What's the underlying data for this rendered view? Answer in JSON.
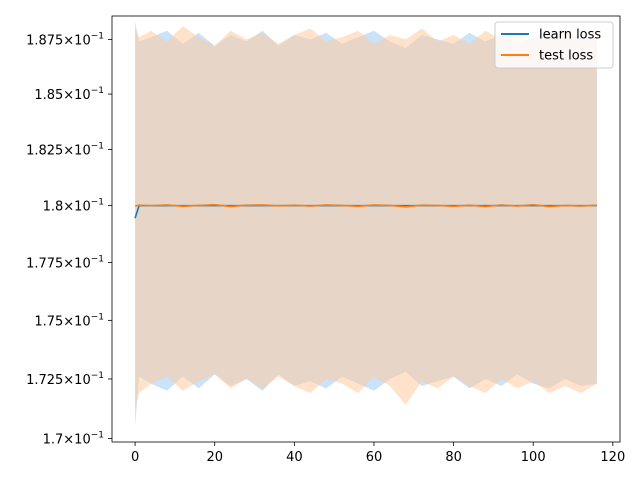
{
  "chart_data": {
    "type": "line",
    "title": "",
    "xlabel": "",
    "ylabel": "",
    "xlim": [
      -5.8,
      121.8
    ],
    "ylim": [
      0.16985,
      0.18858
    ],
    "y_scale": "log",
    "grid": false,
    "legend_position": "top-right",
    "x_ticks": [
      0,
      20,
      40,
      60,
      80,
      100,
      120
    ],
    "x_tick_labels": [
      "0",
      "20",
      "40",
      "60",
      "80",
      "100",
      "120"
    ],
    "y_ticks": [
      0.17,
      0.1725,
      0.175,
      0.1775,
      0.18,
      0.1825,
      0.185,
      0.1875
    ],
    "y_tick_labels": [
      {
        "mantissa": "1.7",
        "base": "10",
        "exponent": "−1"
      },
      {
        "mantissa": "1.725",
        "base": "10",
        "exponent": "−1"
      },
      {
        "mantissa": "1.75",
        "base": "10",
        "exponent": "−1"
      },
      {
        "mantissa": "1.775",
        "base": "10",
        "exponent": "−1"
      },
      {
        "mantissa": "1.8",
        "base": "10",
        "exponent": "−1"
      },
      {
        "mantissa": "1.825",
        "base": "10",
        "exponent": "−1"
      },
      {
        "mantissa": "1.85",
        "base": "10",
        "exponent": "−1"
      },
      {
        "mantissa": "1.875",
        "base": "10",
        "exponent": "−1"
      }
    ],
    "series": [
      {
        "name": "learn loss",
        "color": "#1f77b4",
        "band_color": "#9fcbf5",
        "x": [
          0,
          1,
          4,
          8,
          12,
          16,
          20,
          24,
          28,
          32,
          36,
          40,
          44,
          48,
          52,
          56,
          60,
          64,
          68,
          72,
          76,
          80,
          84,
          88,
          92,
          96,
          100,
          104,
          108,
          112,
          116
        ],
        "mean": [
          0.17945,
          0.18,
          0.18,
          0.18,
          0.18,
          0.18,
          0.18,
          0.18,
          0.18,
          0.18,
          0.18,
          0.18,
          0.18,
          0.18,
          0.18,
          0.18,
          0.18,
          0.18,
          0.18,
          0.18,
          0.18,
          0.18,
          0.18,
          0.18,
          0.18,
          0.18,
          0.18,
          0.18,
          0.18,
          0.18,
          0.18
        ],
        "upper": [
          0.1883,
          0.1874,
          0.1876,
          0.1879,
          0.1873,
          0.1878,
          0.1872,
          0.1877,
          0.1874,
          0.1879,
          0.1872,
          0.1877,
          0.1875,
          0.1878,
          0.1873,
          0.1876,
          0.1879,
          0.1874,
          0.1871,
          0.1877,
          0.1875,
          0.1873,
          0.1878,
          0.1874,
          0.1877,
          0.1872,
          0.1876,
          0.1879,
          0.1874,
          0.1877,
          0.1876
        ],
        "lower": [
          0.1705,
          0.1726,
          0.1723,
          0.172,
          0.1726,
          0.1721,
          0.1727,
          0.1722,
          0.1725,
          0.172,
          0.1727,
          0.1722,
          0.1724,
          0.1721,
          0.1726,
          0.1723,
          0.172,
          0.1725,
          0.1728,
          0.1722,
          0.1724,
          0.1726,
          0.1721,
          0.1725,
          0.1722,
          0.1727,
          0.1723,
          0.1721,
          0.1725,
          0.1722,
          0.1723
        ]
      },
      {
        "name": "test loss",
        "color": "#ff7f0e",
        "band_color": "#ffcb9f",
        "x": [
          0,
          1,
          4,
          8,
          12,
          16,
          20,
          24,
          28,
          32,
          36,
          40,
          44,
          48,
          52,
          56,
          60,
          64,
          68,
          72,
          76,
          80,
          84,
          88,
          92,
          96,
          100,
          104,
          108,
          112,
          116
        ],
        "mean": [
          0.17998,
          0.18002,
          0.18,
          0.18003,
          0.17997,
          0.18001,
          0.18004,
          0.17996,
          0.18002,
          0.18003,
          0.17999,
          0.18002,
          0.17998,
          0.18003,
          0.18001,
          0.17997,
          0.18003,
          0.18001,
          0.17995,
          0.18002,
          0.18001,
          0.17997,
          0.18002,
          0.17996,
          0.18003,
          0.17998,
          0.18004,
          0.17996,
          0.18001,
          0.17998,
          0.18002
        ],
        "upper": [
          0.1879,
          0.1876,
          0.1879,
          0.1874,
          0.1881,
          0.1876,
          0.1872,
          0.1879,
          0.1875,
          0.1878,
          0.1873,
          0.1877,
          0.188,
          0.1874,
          0.1876,
          0.1879,
          0.1873,
          0.1877,
          0.1875,
          0.188,
          0.1874,
          0.1877,
          0.1873,
          0.1879,
          0.1875,
          0.1878,
          0.1874,
          0.1877,
          0.188,
          0.1874,
          0.1877
        ],
        "lower": [
          0.1712,
          0.1719,
          0.1723,
          0.1726,
          0.172,
          0.1724,
          0.1727,
          0.1721,
          0.1725,
          0.1721,
          0.1726,
          0.1722,
          0.1719,
          0.1725,
          0.1723,
          0.1719,
          0.1726,
          0.1722,
          0.1714,
          0.1724,
          0.1721,
          0.1726,
          0.1722,
          0.1719,
          0.1725,
          0.1721,
          0.1724,
          0.1719,
          0.1722,
          0.1719,
          0.1723
        ]
      }
    ]
  }
}
